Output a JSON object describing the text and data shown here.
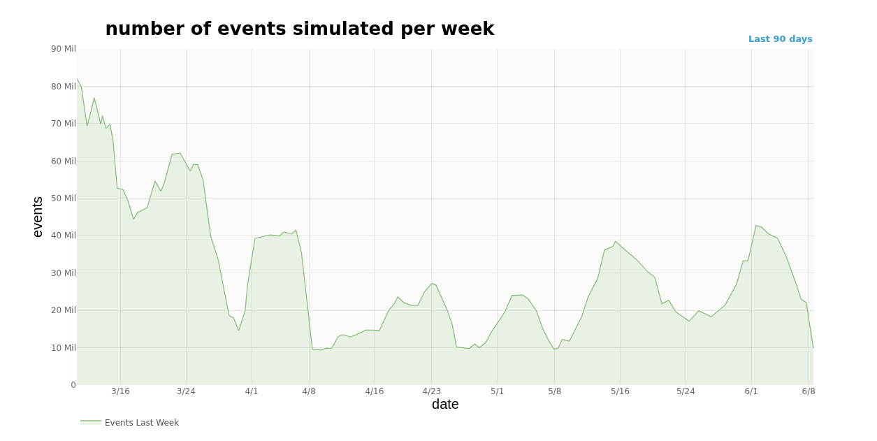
{
  "chart_data": {
    "type": "area",
    "title": "number of events simulated per week",
    "xlabel": "date",
    "ylabel": "events",
    "annotations": [
      "Last 90 days"
    ],
    "x": [
      "--03-10T16:00",
      "--03-11T05:00",
      "--03-11T22:00",
      "--03-12T19:00",
      "--03-13T14:00",
      "--03-13T19:00",
      "--03-14T05:00",
      "--03-14T17:00",
      "--03-15T02:00",
      "--03-15T14:00",
      "--03-16T07:00",
      "--03-16T22:00",
      "--03-17T14:00",
      "--03-18T02:00",
      "--03-19T06:00",
      "--03-20T05:00",
      "--03-20T22:00",
      "--03-21T07:00",
      "--03-22T07:00",
      "--03-23T07:00",
      "--03-24T12:00",
      "--03-24T22:00",
      "--03-25T10:00",
      "--03-26T02:00",
      "--03-27T00:00",
      "--03-27T22:00",
      "--03-29T06:00",
      "--03-29T19:00",
      "--03-30T10:00",
      "--03-31T05:00",
      "--03-31T12:00",
      "--04-01T10:00",
      "--04-03T06:00",
      "--04-04T10:00",
      "--04-04T22:00",
      "--04-05T22:00",
      "--04-06T10:00",
      "--04-07T02:00",
      "--04-08T10:00",
      "--04-09T10:00",
      "--04-10T02:00",
      "--04-10T18:00",
      "--04-11T14:00",
      "--04-12T02:00",
      "--04-13T02:00",
      "--04-13T19:00",
      "--04-14T22:00",
      "--04-15T18:00",
      "--04-16T14:00",
      "--04-17T17:00",
      "--04-18T10:00",
      "--04-18T20:00",
      "--04-19T14:00",
      "--04-20T12:00",
      "--04-21T07:00",
      "--04-22T02:00",
      "--04-23T00:00",
      "--04-23T12:00",
      "--04-24T22:00",
      "--04-25T12:00",
      "--04-26T00:00",
      "--04-27T02:00",
      "--04-27T14:00",
      "--04-28T06:00",
      "--04-28T19:00",
      "--04-29T14:00",
      "--04-30T07:00",
      "--05-01T22:00",
      "--05-02T19:00",
      "--05-04T02:00",
      "--05-04T19:00",
      "--05-05T18:00",
      "--05-06T14:00",
      "--05-07T07:00",
      "--05-07T22:00",
      "--05-08T10:00",
      "--05-08T22:00",
      "--05-09T19:00",
      "--05-11T07:00",
      "--05-12T02:00",
      "--05-13T06:00",
      "--05-14T02:00",
      "--05-15T02:00",
      "--05-15T10:00",
      "--05-16T14:00",
      "--05-18T00:00",
      "--05-19T10:00",
      "--05-20T05:00",
      "--05-21T02:00",
      "--05-21T22:00",
      "--05-22T19:00",
      "--05-24T10:00",
      "--05-25T14:00",
      "--05-27T02:00",
      "--05-28T19:00",
      "--05-30T05:00",
      "--05-31T00:00",
      "--05-31T14:00",
      "--06-01T14:00",
      "--06-02T06:00",
      "--06-03T02:00",
      "--06-04T05:00",
      "--06-05T07:00",
      "--06-06T10:00",
      "--06-07T02:00",
      "--06-07T17:00",
      "--06-08T02:00",
      "--06-08T14:00"
    ],
    "series": [
      {
        "name": "Events Last Week",
        "color": "#8cbf7c",
        "values": [
          82.1,
          79.9,
          69.3,
          76.9,
          69.9,
          72.1,
          68.7,
          69.8,
          65.5,
          52.7,
          52.4,
          49.3,
          44.4,
          46.2,
          47.5,
          54.6,
          51.9,
          53.8,
          61.8,
          62.1,
          57.3,
          59.1,
          59.0,
          54.9,
          39.9,
          33.6,
          18.6,
          18.0,
          14.6,
          19.9,
          26.8,
          39.3,
          40.2,
          39.9,
          41.0,
          40.5,
          41.5,
          35.5,
          9.6,
          9.4,
          9.9,
          9.8,
          13.0,
          13.5,
          12.9,
          13.5,
          14.7,
          14.7,
          14.6,
          19.9,
          21.8,
          23.6,
          22.1,
          21.3,
          21.3,
          24.9,
          27.2,
          26.8,
          19.9,
          16.1,
          10.2,
          9.9,
          9.8,
          11.0,
          10.0,
          11.4,
          14.3,
          19.6,
          24.0,
          24.1,
          23.0,
          19.9,
          14.9,
          11.8,
          9.6,
          9.9,
          12.2,
          11.8,
          18.3,
          23.6,
          28.6,
          36.2,
          37.1,
          38.5,
          36.2,
          33.6,
          30.2,
          28.9,
          21.8,
          22.7,
          19.6,
          17.1,
          19.9,
          18.3,
          21.4,
          27.1,
          33.3,
          33.3,
          42.7,
          42.3,
          40.5,
          39.3,
          34.3,
          27.4,
          23.0,
          22.1,
          16.8,
          9.9
        ]
      }
    ],
    "xlim": [
      "--03-10T16:00",
      "--06-08T16:00"
    ],
    "xticks": [
      {
        "value": "--03-16",
        "label": "3/16"
      },
      {
        "value": "--03-24",
        "label": "3/24"
      },
      {
        "value": "--04-01",
        "label": "4/1"
      },
      {
        "value": "--04-08",
        "label": "4/8"
      },
      {
        "value": "--04-16",
        "label": "4/16"
      },
      {
        "value": "--04-23",
        "label": "4/23"
      },
      {
        "value": "--05-01",
        "label": "5/1"
      },
      {
        "value": "--05-08",
        "label": "5/8"
      },
      {
        "value": "--05-16",
        "label": "5/16"
      },
      {
        "value": "--05-24",
        "label": "5/24"
      },
      {
        "value": "--06-01",
        "label": "6/1"
      },
      {
        "value": "--06-08",
        "label": "6/8"
      }
    ],
    "ylim": [
      0,
      90
    ],
    "yticks": [
      0,
      {
        "value": 10,
        "label": "10 Mil"
      },
      {
        "value": 20,
        "label": "20 Mil"
      },
      {
        "value": 30,
        "label": "30 Mil"
      },
      {
        "value": 40,
        "label": "40 Mil"
      },
      {
        "value": 50,
        "label": "50 Mil"
      },
      {
        "value": 60,
        "label": "60 Mil"
      },
      {
        "value": 70,
        "label": "70 Mil"
      },
      {
        "value": 80,
        "label": "80 Mil"
      },
      {
        "value": 90,
        "label": "90 Mil"
      }
    ],
    "grid": true,
    "legend": "bottom left",
    "marker": "none",
    "line_style": "solid"
  }
}
